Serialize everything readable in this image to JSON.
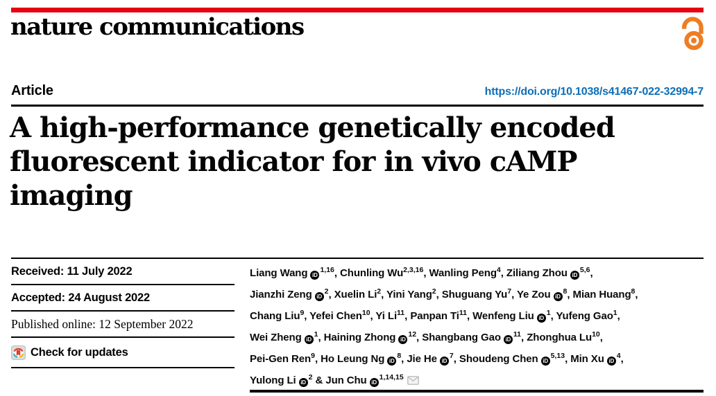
{
  "masthead": {
    "journal_wordmark": "nature communications"
  },
  "header": {
    "article_type": "Article",
    "doi_link": "https://doi.org/10.1038/s41467-022-32994-7"
  },
  "title_lines": [
    "A high-performance genetically encoded",
    "fluorescent indicator for in vivo cAMP",
    "imaging"
  ],
  "metadata": {
    "received": "Received: 11 July 2022",
    "accepted": "Accepted: 24 August 2022",
    "published_online": "Published online: 12 September 2022",
    "check_for_updates_label": "Check for updates"
  },
  "icons": {
    "orcid_text": "iD",
    "open_access_color": "#ee7d23",
    "crossmark": "crossmark-badge",
    "envelope": "corresponding-author-email"
  },
  "colors": {
    "brand_red": "#e60012",
    "link_blue": "#0d6eb6"
  },
  "authors": [
    {
      "name": "Liang Wang",
      "orcid": true,
      "sup": "1,16",
      "trail": ","
    },
    {
      "name": "Chunling Wu",
      "orcid": false,
      "sup": "2,3,16",
      "trail": ","
    },
    {
      "name": "Wanling Peng",
      "orcid": false,
      "sup": "4",
      "trail": ","
    },
    {
      "name": "Ziliang Zhou",
      "orcid": true,
      "sup": "5,6",
      "trail": ",",
      "break": true
    },
    {
      "name": "Jianzhi Zeng",
      "orcid": true,
      "sup": "2",
      "trail": ","
    },
    {
      "name": "Xuelin Li",
      "orcid": false,
      "sup": "2",
      "trail": ","
    },
    {
      "name": "Yini Yang",
      "orcid": false,
      "sup": "2",
      "trail": ","
    },
    {
      "name": "Shuguang Yu",
      "orcid": false,
      "sup": "7",
      "trail": ","
    },
    {
      "name": "Ye Zou",
      "orcid": true,
      "sup": "8",
      "trail": ","
    },
    {
      "name": "Mian Huang",
      "orcid": false,
      "sup": "8",
      "trail": ",",
      "break": true
    },
    {
      "name": "Chang Liu",
      "orcid": false,
      "sup": "9",
      "trail": ","
    },
    {
      "name": "Yefei Chen",
      "orcid": false,
      "sup": "10",
      "trail": ","
    },
    {
      "name": "Yi Li",
      "orcid": false,
      "sup": "11",
      "trail": ","
    },
    {
      "name": "Panpan Ti",
      "orcid": false,
      "sup": "11",
      "trail": ","
    },
    {
      "name": "Wenfeng Liu",
      "orcid": true,
      "sup": "1",
      "trail": ","
    },
    {
      "name": "Yufeng Gao",
      "orcid": false,
      "sup": "1",
      "trail": ",",
      "break": true
    },
    {
      "name": "Wei Zheng",
      "orcid": true,
      "sup": "1",
      "trail": ","
    },
    {
      "name": "Haining Zhong",
      "orcid": true,
      "sup": "12",
      "trail": ","
    },
    {
      "name": "Shangbang Gao",
      "orcid": true,
      "sup": "11",
      "trail": ","
    },
    {
      "name": "Zhonghua Lu",
      "orcid": false,
      "sup": "10",
      "trail": ",",
      "break": true
    },
    {
      "name": "Pei-Gen Ren",
      "orcid": false,
      "sup": "9",
      "trail": ","
    },
    {
      "name": "Ho Leung Ng",
      "orcid": true,
      "sup": "8",
      "trail": ","
    },
    {
      "name": "Jie He",
      "orcid": true,
      "sup": "7",
      "trail": ","
    },
    {
      "name": "Shoudeng Chen",
      "orcid": true,
      "sup": "5,13",
      "trail": ","
    },
    {
      "name": "Min Xu",
      "orcid": true,
      "sup": "4",
      "trail": ",",
      "break": true
    },
    {
      "name": "Yulong Li",
      "orcid": true,
      "sup": "2",
      "trail": " &"
    },
    {
      "name": "Jun Chu",
      "orcid": true,
      "sup": "1,14,15",
      "trail": "",
      "email": true
    }
  ]
}
